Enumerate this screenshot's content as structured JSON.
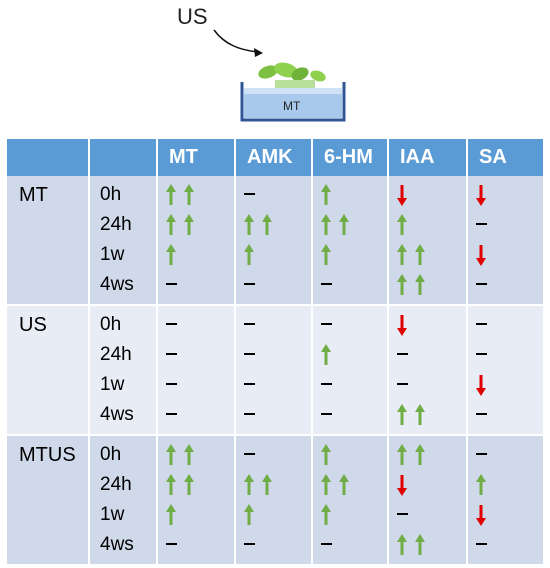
{
  "illustration": {
    "treatment_label": "US",
    "pot_label": "MT"
  },
  "table": {
    "columns": [
      "MT",
      "AMK",
      "6-HM",
      "IAA",
      "SA"
    ],
    "groups": [
      {
        "label": "MT",
        "rows": [
          {
            "time": "0h",
            "cells": [
              "up2",
              "dash",
              "up1",
              "down1",
              "down1"
            ]
          },
          {
            "time": "24h",
            "cells": [
              "up2",
              "up2",
              "up2",
              "up1",
              "dash"
            ]
          },
          {
            "time": "1w",
            "cells": [
              "up1",
              "up1",
              "up1",
              "up2",
              "down1"
            ]
          },
          {
            "time": "4ws",
            "cells": [
              "dash",
              "dash",
              "dash",
              "up2",
              "dash"
            ]
          }
        ]
      },
      {
        "label": "US",
        "rows": [
          {
            "time": "0h",
            "cells": [
              "dash",
              "dash",
              "dash",
              "down1",
              "dash"
            ]
          },
          {
            "time": "24h",
            "cells": [
              "dash",
              "dash",
              "up1",
              "dash",
              "dash"
            ]
          },
          {
            "time": "1w",
            "cells": [
              "dash",
              "dash",
              "dash",
              "dash",
              "down1"
            ]
          },
          {
            "time": "4ws",
            "cells": [
              "dash",
              "dash",
              "dash",
              "up2",
              "dash"
            ]
          }
        ]
      },
      {
        "label": "MTUS",
        "rows": [
          {
            "time": "0h",
            "cells": [
              "up2",
              "dash",
              "up1",
              "up2",
              "dash"
            ]
          },
          {
            "time": "24h",
            "cells": [
              "up2",
              "up2",
              "up2",
              "down1",
              "up1"
            ]
          },
          {
            "time": "1w",
            "cells": [
              "up1",
              "up1",
              "up1",
              "dash",
              "down1"
            ]
          },
          {
            "time": "4ws",
            "cells": [
              "dash",
              "dash",
              "dash",
              "up2",
              "dash"
            ]
          }
        ]
      }
    ]
  },
  "colors": {
    "header": "#5b9bd5",
    "row_dark": "#cfd9ea",
    "row_light": "#e8ecf5",
    "up_arrow": "#70ad47",
    "down_arrow": "#e00000"
  }
}
